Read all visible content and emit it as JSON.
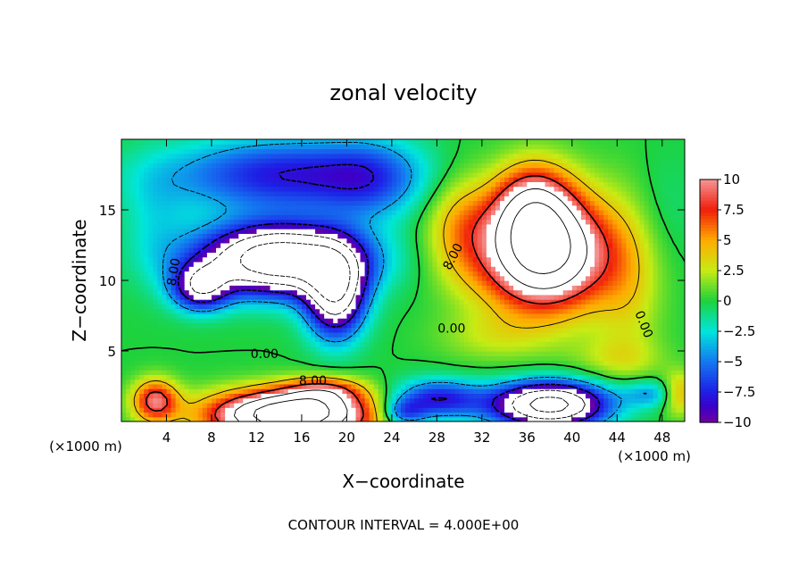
{
  "chart_data": {
    "type": "heatmap",
    "title": "zonal velocity",
    "xlabel": "X−coordinate",
    "ylabel": "Z−coordinate",
    "x_unit_left": "(×1000 m)",
    "x_unit_right": "(×1000 m)",
    "xlim": [
      0,
      50
    ],
    "ylim": [
      0,
      20
    ],
    "x_ticks": [
      4,
      8,
      12,
      16,
      20,
      24,
      28,
      32,
      36,
      40,
      44,
      48
    ],
    "y_ticks": [
      5,
      10,
      15
    ],
    "colorbar": {
      "range": [
        -10,
        10
      ],
      "ticks": [
        10,
        7.5,
        5,
        2.5,
        0,
        -2.5,
        -5,
        -7.5,
        -10
      ],
      "tick_labels": [
        "10",
        "7.5",
        "5",
        "2.5",
        "0",
        "−2.5",
        "−5",
        "−7.5",
        "−10"
      ],
      "saturated_color": "#ffffff"
    },
    "contour_interval_text": "CONTOUR INTERVAL = 4.000E+00",
    "contour_labels": [
      {
        "text": "8.00",
        "x": 4.6,
        "y": 10.6,
        "angle": -80
      },
      {
        "text": "8.00",
        "x": 29.4,
        "y": 11.7,
        "angle": -62
      },
      {
        "text": "0.00",
        "x": 29.3,
        "y": 6.6,
        "angle": 0
      },
      {
        "text": "0.00",
        "x": 46.4,
        "y": 6.9,
        "angle": 68
      },
      {
        "text": "0.00",
        "x": 12.7,
        "y": 4.8,
        "angle": 0
      },
      {
        "text": "8.00",
        "x": 17.0,
        "y": 2.9,
        "angle": 0
      }
    ],
    "features": [
      {
        "kind": "min",
        "x": 14.0,
        "y": 11.5,
        "sx": 7.0,
        "sy": 2.4,
        "value": -20
      },
      {
        "kind": "min",
        "x": 19.0,
        "y": 9.0,
        "sx": 2.6,
        "sy": 3.0,
        "value": -14
      },
      {
        "kind": "min",
        "x": 7.0,
        "y": 9.5,
        "sx": 2.5,
        "sy": 1.6,
        "value": -10
      },
      {
        "kind": "min",
        "x": 15.0,
        "y": 17.5,
        "sx": 11.0,
        "sy": 2.6,
        "value": -8
      },
      {
        "kind": "min",
        "x": 22.0,
        "y": 17.0,
        "sx": 4.0,
        "sy": 3.0,
        "value": -3
      },
      {
        "kind": "max",
        "x": 37.5,
        "y": 12.0,
        "sx": 5.5,
        "sy": 4.0,
        "value": 18
      },
      {
        "kind": "max",
        "x": 36.5,
        "y": 15.5,
        "sx": 3.5,
        "sy": 3.0,
        "value": 8
      },
      {
        "kind": "max",
        "x": 30.0,
        "y": 14.0,
        "sx": 3.0,
        "sy": 4.0,
        "value": 4
      },
      {
        "kind": "max",
        "x": 15.0,
        "y": 0.5,
        "sx": 7.0,
        "sy": 1.7,
        "value": 20
      },
      {
        "kind": "max",
        "x": 3.0,
        "y": 1.5,
        "sx": 2.0,
        "sy": 1.5,
        "value": 9
      },
      {
        "kind": "max",
        "x": 18.0,
        "y": 2.2,
        "sx": 3.5,
        "sy": 1.0,
        "value": 6
      },
      {
        "kind": "min",
        "x": 38.0,
        "y": 1.2,
        "sx": 5.0,
        "sy": 1.6,
        "value": -18
      },
      {
        "kind": "min",
        "x": 28.0,
        "y": 1.6,
        "sx": 4.0,
        "sy": 1.4,
        "value": -8
      },
      {
        "kind": "min",
        "x": 25.0,
        "y": 0.6,
        "sx": 2.0,
        "sy": 1.0,
        "value": -6
      },
      {
        "kind": "min",
        "x": 47.0,
        "y": 2.0,
        "sx": 2.5,
        "sy": 1.0,
        "value": -4
      },
      {
        "kind": "max",
        "x": 49.5,
        "y": 2.0,
        "sx": 1.5,
        "sy": 1.5,
        "value": 5
      },
      {
        "kind": "max",
        "x": 45.0,
        "y": 10.0,
        "sx": 3.0,
        "sy": 6.0,
        "value": 3
      },
      {
        "kind": "max",
        "x": 44.0,
        "y": 4.5,
        "sx": 4.0,
        "sy": 1.5,
        "value": 2
      },
      {
        "kind": "max",
        "x": 33.0,
        "y": 6.0,
        "sx": 5.0,
        "sy": 1.8,
        "value": 2
      },
      {
        "kind": "min",
        "x": 40.0,
        "y": 17.5,
        "sx": 4.0,
        "sy": 3.0,
        "value": 0
      },
      {
        "kind": "min",
        "x": 3.0,
        "y": 14.0,
        "sx": 3.0,
        "sy": 4.0,
        "value": -2
      },
      {
        "kind": "min",
        "x": 48.0,
        "y": 15.0,
        "sx": 3.0,
        "sy": 4.0,
        "value": -1
      }
    ]
  }
}
